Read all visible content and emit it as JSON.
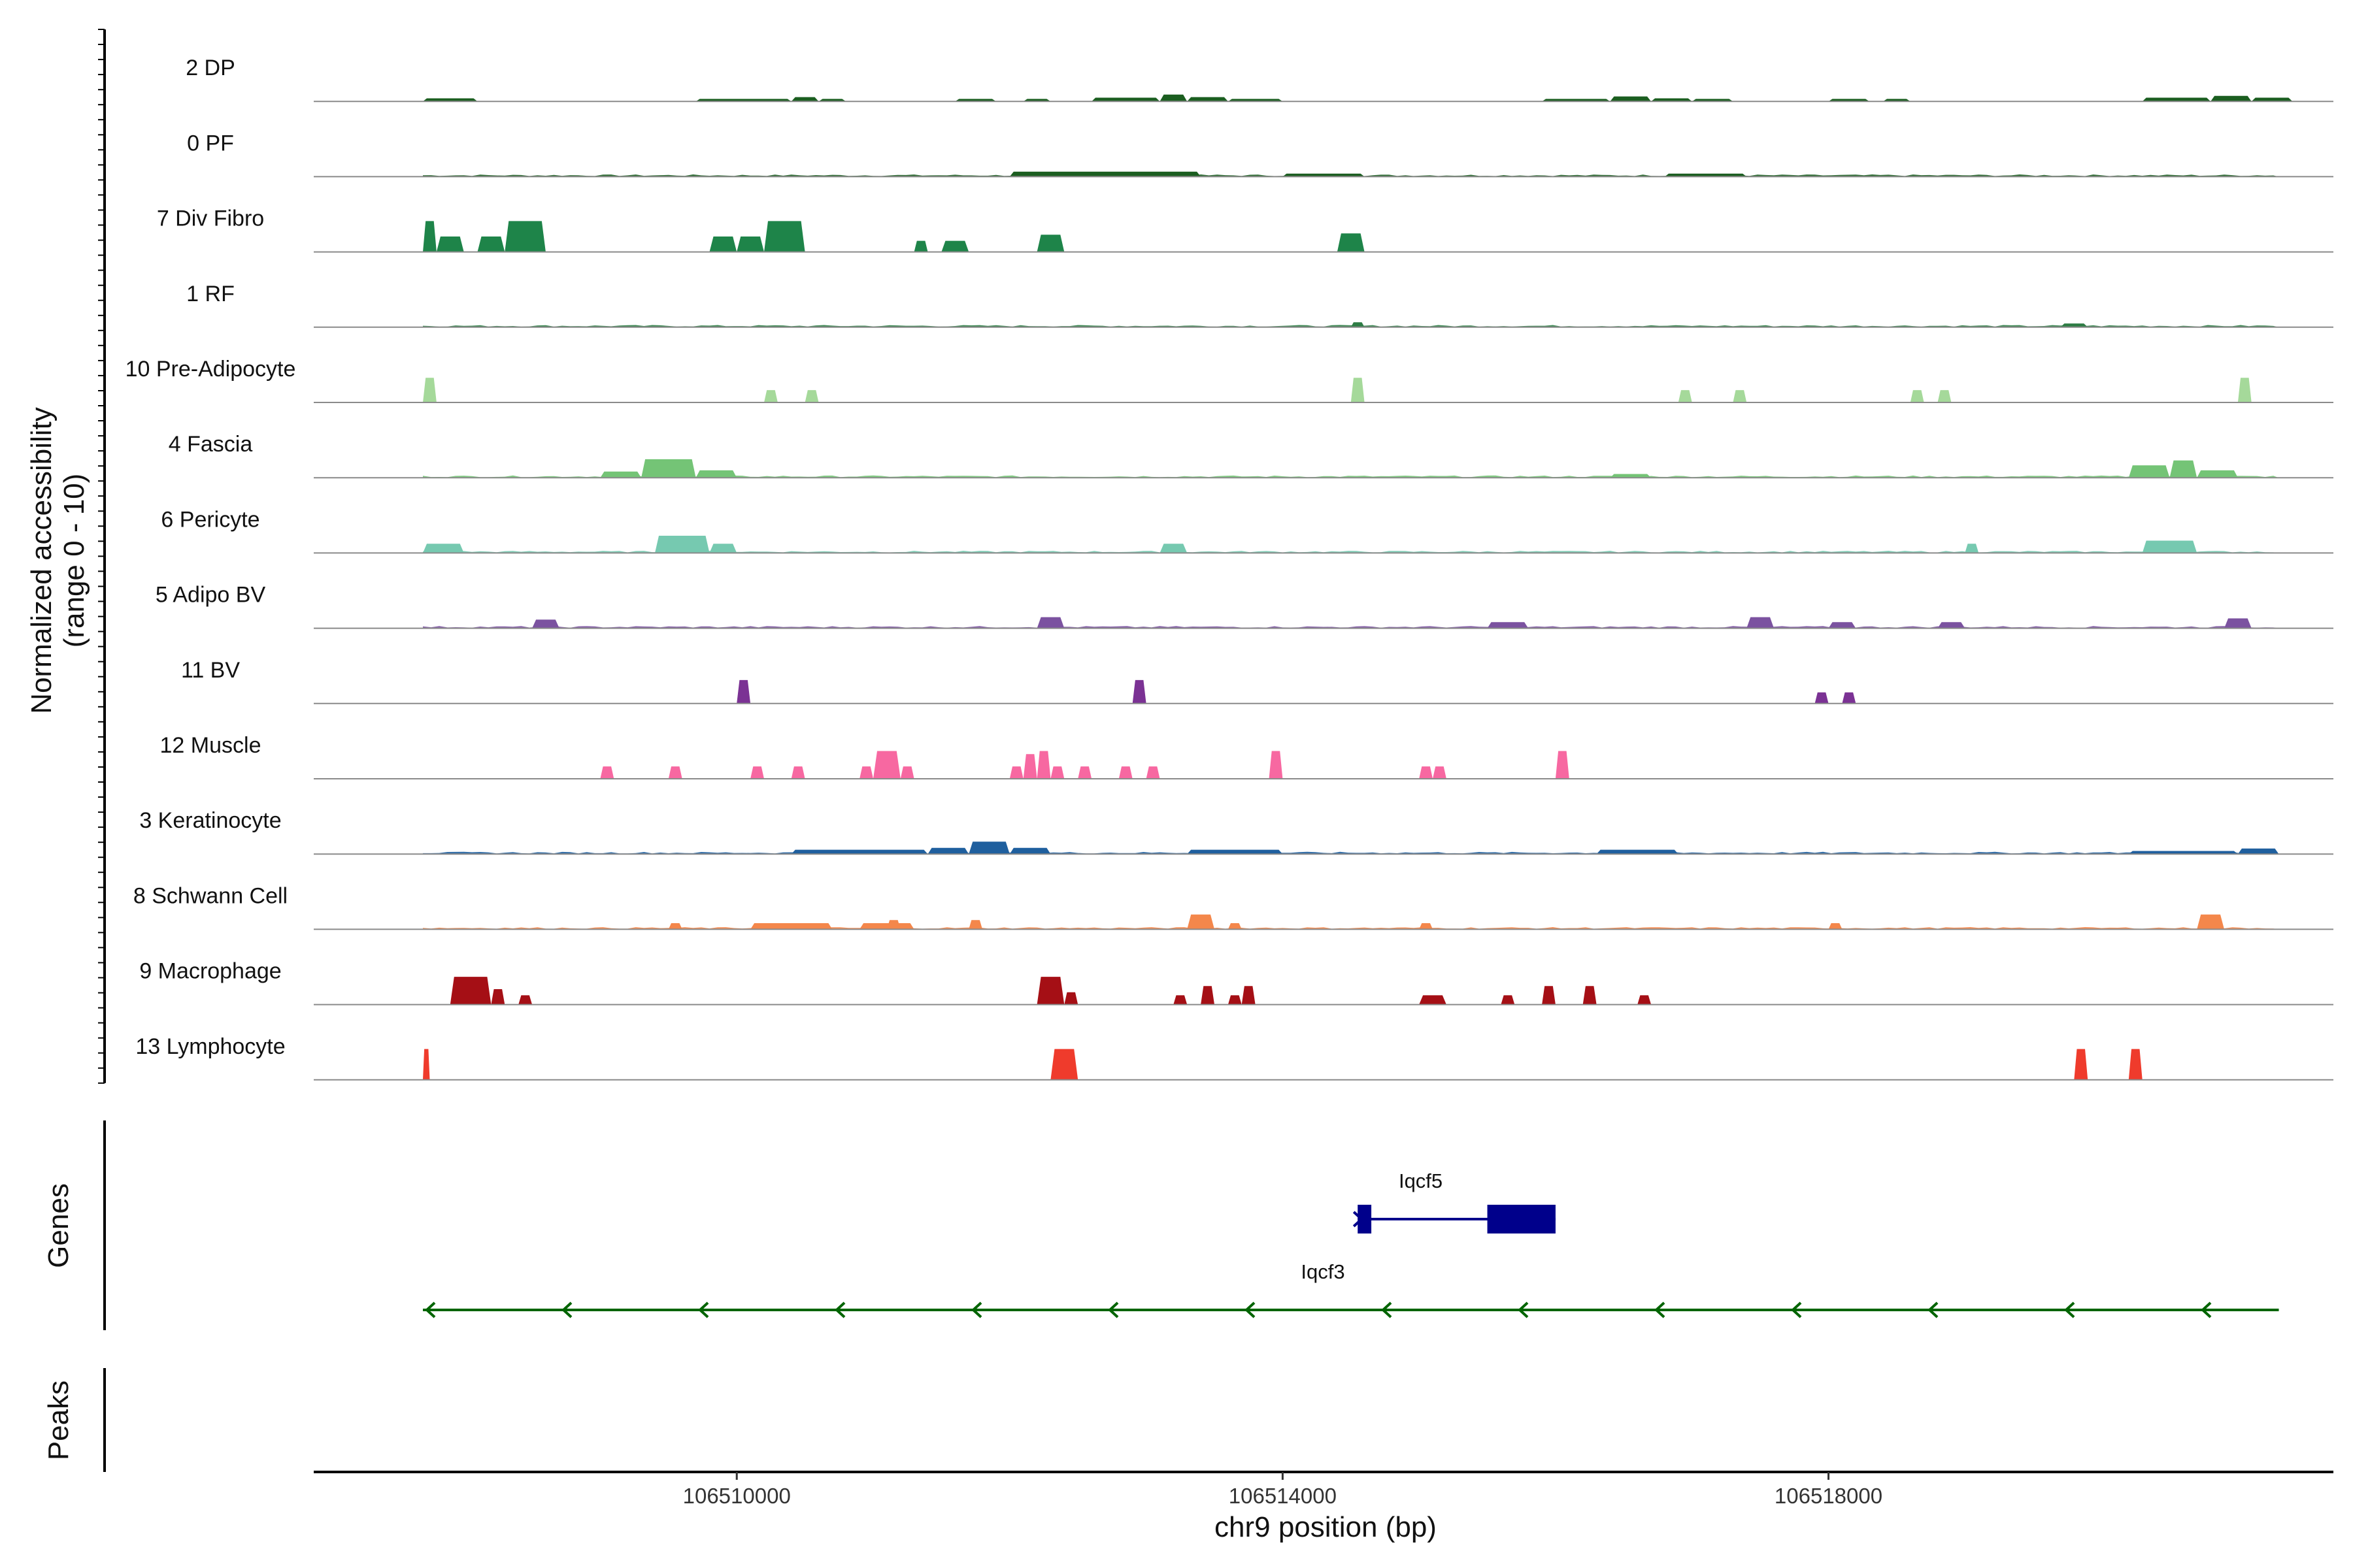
{
  "chart_data": {
    "type": "area",
    "coverage": {
      "ylabel_line1": "Normalized accessibility",
      "ylabel_line2": "(range 0 - 10)",
      "ylim": [
        0,
        10
      ],
      "xlim": [
        106506900,
        106521700
      ],
      "tracks": [
        {
          "name": "2 DP",
          "color": "#1b5e20",
          "peaks": [
            [
              106507700,
              106508100,
              0.5
            ],
            [
              106509700,
              106510400,
              0.4
            ],
            [
              106510400,
              106510600,
              0.7
            ],
            [
              106510600,
              106510800,
              0.4
            ],
            [
              106511600,
              106511900,
              0.4
            ],
            [
              106512100,
              106512300,
              0.4
            ],
            [
              106512600,
              106513100,
              0.6
            ],
            [
              106513100,
              106513300,
              1.1
            ],
            [
              106513300,
              106513600,
              0.7
            ],
            [
              106513600,
              106514000,
              0.4
            ],
            [
              106515900,
              106516400,
              0.4
            ],
            [
              106516400,
              106516700,
              0.8
            ],
            [
              106516700,
              106517000,
              0.5
            ],
            [
              106517000,
              106517300,
              0.4
            ],
            [
              106518000,
              106518300,
              0.4
            ],
            [
              106518400,
              106518600,
              0.4
            ],
            [
              106520300,
              106520800,
              0.6
            ],
            [
              106520800,
              106521100,
              0.9
            ],
            [
              106521100,
              106521400,
              0.6
            ]
          ]
        },
        {
          "name": "0 PF",
          "color": "#1b5e20",
          "noise": 0.3,
          "peaks": [
            [
              106512000,
              106513400,
              0.8
            ],
            [
              106514000,
              106514600,
              0.5
            ],
            [
              106516800,
              106517400,
              0.5
            ]
          ]
        },
        {
          "name": "7 Div Fibro",
          "color": "#1e8449",
          "peaks": [
            [
              106507700,
              106507800,
              5.0
            ],
            [
              106507800,
              106508000,
              2.5
            ],
            [
              106508100,
              106508300,
              2.5
            ],
            [
              106508300,
              106508600,
              5.0
            ],
            [
              106509800,
              106510000,
              2.5
            ],
            [
              106510000,
              106510200,
              2.5
            ],
            [
              106510200,
              106510500,
              5.0
            ],
            [
              106511300,
              106511400,
              1.8
            ],
            [
              106511500,
              106511700,
              1.8
            ],
            [
              106512200,
              106512400,
              2.8
            ],
            [
              106514400,
              106514600,
              3.0
            ]
          ]
        },
        {
          "name": "1 RF",
          "color": "#2e7d45",
          "noise": 0.3,
          "peaks": [
            [
              106514500,
              106514600,
              0.8
            ],
            [
              106519700,
              106519900,
              0.6
            ]
          ]
        },
        {
          "name": "10 Pre-Adipocyte",
          "color": "#a5d99a",
          "peaks": [
            [
              106507700,
              106507800,
              4.0
            ],
            [
              106510200,
              106510300,
              2.0
            ],
            [
              106510500,
              106510600,
              2.0
            ],
            [
              106514500,
              106514600,
              4.0
            ],
            [
              106516900,
              106517000,
              2.0
            ],
            [
              106517300,
              106517400,
              2.0
            ],
            [
              106518600,
              106518700,
              2.0
            ],
            [
              106518800,
              106518900,
              2.0
            ],
            [
              106521000,
              106521100,
              4.0
            ]
          ]
        },
        {
          "name": "4 Fascia",
          "color": "#74c476",
          "noise": 0.3,
          "peaks": [
            [
              106509300,
              106509700,
              3.0
            ],
            [
              106509000,
              106509300,
              1.0
            ],
            [
              106509700,
              106510000,
              1.2
            ],
            [
              106516400,
              106516700,
              0.6
            ],
            [
              106520200,
              106520500,
              2.0
            ],
            [
              106520500,
              106520700,
              2.8
            ],
            [
              106520700,
              106521000,
              1.2
            ]
          ]
        },
        {
          "name": "6 Pericyte",
          "color": "#76c9b0",
          "noise": 0.3,
          "peaks": [
            [
              106507700,
              106508000,
              1.5
            ],
            [
              106509400,
              106509800,
              2.8
            ],
            [
              106509800,
              106510000,
              1.5
            ],
            [
              106513100,
              106513300,
              1.5
            ],
            [
              106519000,
              106519100,
              1.5
            ],
            [
              106520300,
              106520700,
              2.0
            ]
          ]
        },
        {
          "name": "5 Adipo BV",
          "color": "#7b52a0",
          "noise": 0.3,
          "peaks": [
            [
              106508500,
              106508700,
              1.4
            ],
            [
              106512200,
              106512400,
              1.8
            ],
            [
              106515500,
              106515800,
              1.0
            ],
            [
              106517400,
              106517600,
              1.8
            ],
            [
              106518000,
              106518200,
              1.0
            ],
            [
              106518800,
              106519000,
              1.0
            ],
            [
              106520900,
              106521100,
              1.6
            ]
          ]
        },
        {
          "name": "11 BV",
          "color": "#7b3294",
          "peaks": [
            [
              106510000,
              106510100,
              3.8
            ],
            [
              106512900,
              106513000,
              3.8
            ],
            [
              106517900,
              106518000,
              1.8
            ],
            [
              106518100,
              106518200,
              1.8
            ]
          ]
        },
        {
          "name": "12 Muscle",
          "color": "#f768a1",
          "peaks": [
            [
              106509000,
              106509100,
              2.0
            ],
            [
              106509500,
              106509600,
              2.0
            ],
            [
              106510100,
              106510200,
              2.0
            ],
            [
              106510400,
              106510500,
              2.0
            ],
            [
              106510900,
              106511000,
              2.0
            ],
            [
              106511000,
              106511200,
              4.5
            ],
            [
              106511200,
              106511300,
              2.0
            ],
            [
              106512000,
              106512100,
              2.0
            ],
            [
              106512100,
              106512200,
              4.0
            ],
            [
              106512200,
              106512300,
              4.5
            ],
            [
              106512300,
              106512400,
              2.0
            ],
            [
              106512500,
              106512600,
              2.0
            ],
            [
              106512800,
              106512900,
              2.0
            ],
            [
              106513000,
              106513100,
              2.0
            ],
            [
              106513900,
              106514000,
              4.5
            ],
            [
              106515000,
              106515100,
              2.0
            ],
            [
              106515100,
              106515200,
              2.0
            ],
            [
              106516000,
              106516100,
              4.5
            ]
          ]
        },
        {
          "name": "3 Keratinocyte",
          "color": "#1f5f9e",
          "noise": 0.3,
          "peaks": [
            [
              106510400,
              106511400,
              0.7
            ],
            [
              106511400,
              106511700,
              1.0
            ],
            [
              106511700,
              106512000,
              2.0
            ],
            [
              106512000,
              106512300,
              1.0
            ],
            [
              106513300,
              106514000,
              0.7
            ],
            [
              106516300,
              106516900,
              0.7
            ],
            [
              106520200,
              106521000,
              0.5
            ],
            [
              106521000,
              106521300,
              0.9
            ]
          ]
        },
        {
          "name": "8 Schwann Cell",
          "color": "#f4874b",
          "noise": 0.3,
          "peaks": [
            [
              106509500,
              106509600,
              1.0
            ],
            [
              106510100,
              106510700,
              1.0
            ],
            [
              106510900,
              106511300,
              1.0
            ],
            [
              106511100,
              106511200,
              1.5
            ],
            [
              106511700,
              106511800,
              1.5
            ],
            [
              106513300,
              106513500,
              2.4
            ],
            [
              106513600,
              106513700,
              1.0
            ],
            [
              106515000,
              106515100,
              1.0
            ],
            [
              106518000,
              106518100,
              1.0
            ],
            [
              106520700,
              106520900,
              2.4
            ]
          ]
        },
        {
          "name": "9 Macrophage",
          "color": "#a50f15",
          "peaks": [
            [
              106507900,
              106508200,
              4.5
            ],
            [
              106508200,
              106508300,
              2.5
            ],
            [
              106508400,
              106508500,
              1.5
            ],
            [
              106512200,
              106512400,
              4.5
            ],
            [
              106512400,
              106512500,
              2.0
            ],
            [
              106513200,
              106513300,
              1.5
            ],
            [
              106513400,
              106513500,
              3.0
            ],
            [
              106513600,
              106513700,
              1.5
            ],
            [
              106513700,
              106513800,
              3.0
            ],
            [
              106515000,
              106515200,
              1.5
            ],
            [
              106515600,
              106515700,
              1.5
            ],
            [
              106515900,
              106516000,
              3.0
            ],
            [
              106516200,
              106516300,
              3.0
            ],
            [
              106516600,
              106516700,
              1.5
            ]
          ]
        },
        {
          "name": "13 Lymphocyte",
          "color": "#ef3b2c",
          "peaks": [
            [
              106507700,
              106507750,
              5.0
            ],
            [
              106512300,
              106512500,
              5.0
            ],
            [
              106519800,
              106519900,
              5.0
            ],
            [
              106520200,
              106520300,
              5.0
            ]
          ]
        }
      ]
    },
    "x_ticks": [
      {
        "value": 106510000,
        "label": "106510000"
      },
      {
        "value": 106514000,
        "label": "106514000"
      },
      {
        "value": 106518000,
        "label": "106518000"
      }
    ],
    "xlabel": "chr9 position (bp)",
    "genes_label": "Genes",
    "peaks_label": "Peaks",
    "genes": [
      {
        "name": "Iqcf5",
        "strand": "+",
        "start": 106514550,
        "end": 106516000,
        "color": "#00008b",
        "exons": [
          [
            106514550,
            106514650
          ],
          [
            106515500,
            106516000
          ]
        ]
      },
      {
        "name": "Iqcf3",
        "strand": "-",
        "start": 106507700,
        "end": 106521300,
        "color": "#006400",
        "exons": []
      }
    ]
  }
}
